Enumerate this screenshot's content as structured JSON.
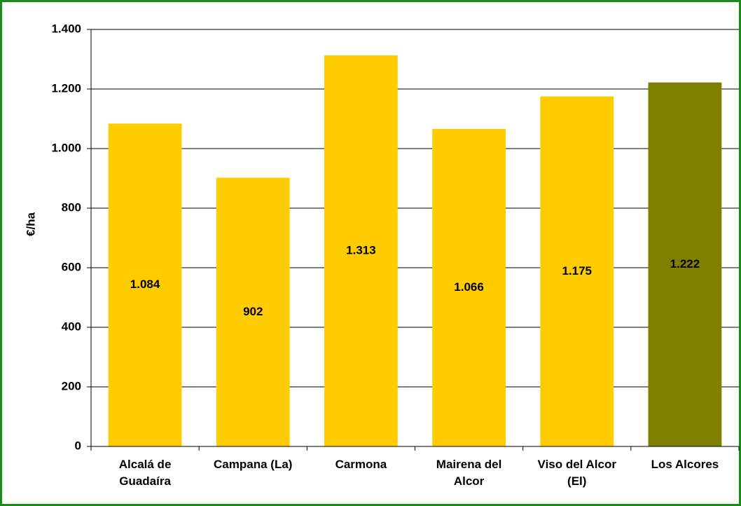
{
  "chart_data": {
    "type": "bar",
    "y_label": "€/ha",
    "categories": [
      "Alcalá de Guadaíra",
      "Campana (La)",
      "Carmona",
      "Mairena del Alcor",
      "Viso del Alcor (El)",
      "Los Alcores"
    ],
    "values": [
      1084,
      902,
      1313,
      1066,
      1175,
      1222
    ],
    "value_labels": [
      "1.084",
      "902",
      "1.313",
      "1.066",
      "1.175",
      "1.222"
    ],
    "colors": [
      "#ffcc00",
      "#ffcc00",
      "#ffcc00",
      "#ffcc00",
      "#ffcc00",
      "#808000"
    ],
    "ylim": [
      0,
      1400
    ],
    "yticks": [
      0,
      200,
      400,
      600,
      800,
      {
        "value": 1000,
        "label": "1.000"
      },
      {
        "value": 1200,
        "label": "1.200"
      },
      {
        "value": 1400,
        "label": "1.400"
      }
    ],
    "grid": true
  }
}
